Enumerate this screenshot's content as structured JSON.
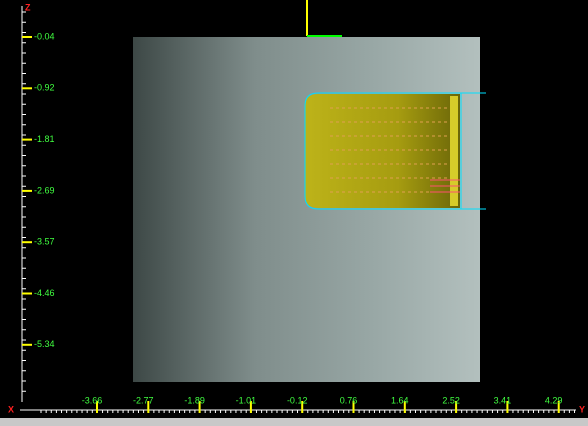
{
  "axes": {
    "z": "Z",
    "x": "X",
    "y": "Y"
  },
  "z_ruler": {
    "labels": [
      "-0.04",
      "-0.92",
      "-1.81",
      "-2.69",
      "-3.57",
      "-4.46",
      "-5.34"
    ]
  },
  "x_ruler": {
    "labels": [
      "-3.66",
      "-2.77",
      "-1.89",
      "-1.01",
      "-0.12",
      "0.76",
      "1.64",
      "2.52",
      "3.41",
      "4.29"
    ]
  }
}
